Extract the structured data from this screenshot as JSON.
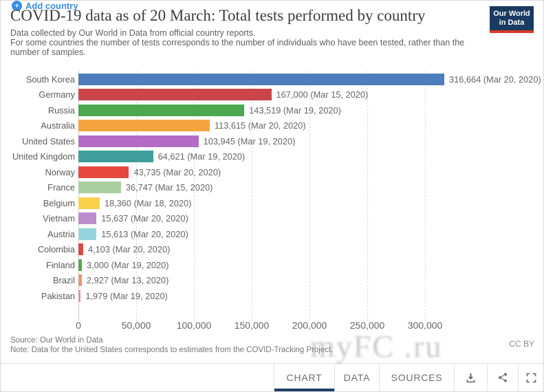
{
  "header": {
    "title": "COVID-19 data as of 20 March: Total tests performed by country",
    "subtitle_lines": [
      "Data collected by Our World in Data from official country reports.",
      "For some countries the number of tests corresponds to the number of individuals who have been tested, rather than the",
      "number of samples."
    ],
    "logo": {
      "line1": "Our World",
      "line2": "in Data"
    }
  },
  "chart_data": {
    "type": "bar",
    "orientation": "horizontal",
    "title": "COVID-19 data as of 20 March: Total tests performed by country",
    "xlabel": "",
    "ylabel": "",
    "categories": [
      "South Korea",
      "Germany",
      "Russia",
      "Australia",
      "United States",
      "United Kingdom",
      "Norway",
      "France",
      "Belgium",
      "Vietnam",
      "Austria",
      "Colombia",
      "Finland",
      "Brazil",
      "Pakistan"
    ],
    "values": [
      316664,
      167000,
      143519,
      113615,
      103945,
      64621,
      43735,
      36747,
      18360,
      15637,
      15613,
      4103,
      3000,
      2927,
      1979
    ],
    "value_labels": [
      "316,664 (Mar 20, 2020)",
      "167,000 (Mar 15, 2020)",
      "143,519 (Mar 19, 2020)",
      "113,615 (Mar 20, 2020)",
      "103,945 (Mar 19, 2020)",
      "64,621 (Mar 19, 2020)",
      "43,735 (Mar 20, 2020)",
      "36,747 (Mar 15, 2020)",
      "18,360 (Mar 18, 2020)",
      "15,637 (Mar 20, 2020)",
      "15,613 (Mar 20, 2020)",
      "4,103 (Mar 20, 2020)",
      "3,000 (Mar 19, 2020)",
      "2,927 (Mar 13, 2020)",
      "1,979 (Mar 19, 2020)"
    ],
    "as_of_dates": [
      "Mar 20, 2020",
      "Mar 15, 2020",
      "Mar 19, 2020",
      "Mar 20, 2020",
      "Mar 19, 2020",
      "Mar 19, 2020",
      "Mar 20, 2020",
      "Mar 15, 2020",
      "Mar 18, 2020",
      "Mar 20, 2020",
      "Mar 20, 2020",
      "Mar 20, 2020",
      "Mar 19, 2020",
      "Mar 13, 2020",
      "Mar 19, 2020"
    ],
    "bar_colors": [
      "#4C7EBB",
      "#CA4549",
      "#4CA74E",
      "#F4A43F",
      "#B36BC6",
      "#3F9E99",
      "#E6473E",
      "#A9CF9E",
      "#FAD14B",
      "#BE8CCC",
      "#94D4DB",
      "#DE4740",
      "#58A84C",
      "#E9946F",
      "#DE8FC3"
    ],
    "xticks": [
      0,
      50000,
      100000,
      150000,
      200000,
      250000,
      300000
    ],
    "xtick_labels": [
      "0",
      "50,000",
      "100,000",
      "150,000",
      "200,000",
      "250,000",
      "300,000"
    ],
    "xlim": [
      0,
      325000
    ],
    "grid": "vertical-dashed",
    "legend": "none"
  },
  "add_country": {
    "label": "Add country"
  },
  "footer": {
    "source": "Source: Our World in Data",
    "note": "Note: Data for the United States corresponds to estimates from the COVID-Tracking Project.",
    "license": "CC BY"
  },
  "watermark": "myFC .ru",
  "tabbar": {
    "tabs": [
      {
        "label": "CHART",
        "active": true
      },
      {
        "label": "DATA",
        "active": false
      },
      {
        "label": "SOURCES",
        "active": false
      }
    ],
    "icons": [
      "download-icon",
      "share-icon",
      "fullscreen-icon"
    ]
  },
  "colors": {
    "accent_blue": "#3A8DE1",
    "logo_navy": "#1A3B61",
    "logo_red": "#D7382D",
    "active_tab_underline": "#1D3D63"
  }
}
